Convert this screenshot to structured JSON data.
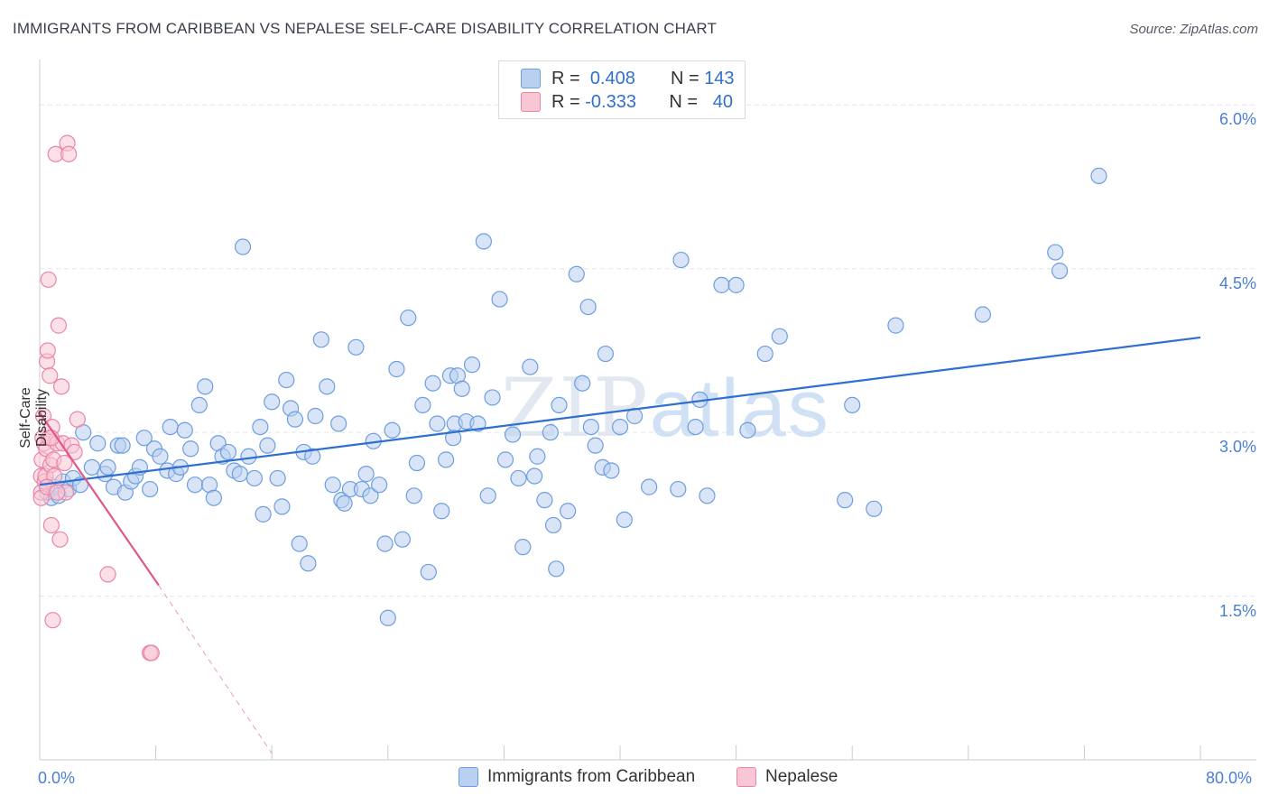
{
  "title": "IMMIGRANTS FROM CARIBBEAN VS NEPALESE SELF-CARE DISABILITY CORRELATION CHART",
  "source": "Source: ZipAtlas.com",
  "watermark": {
    "zip": "ZIP",
    "atlas": "atlas"
  },
  "legend_top": [
    {
      "r_label": "R =",
      "r_value": "0.408",
      "n_label": "N =",
      "n_value": "143"
    },
    {
      "r_label": "R =",
      "r_value": "-0.333",
      "n_label": "N =",
      "n_value": "40"
    }
  ],
  "colors": {
    "caribbean": "#6c9ee0",
    "caribbean_fill": "#b9d0f0",
    "nepalese": "#ec84a4",
    "nepalese_fill": "#f8c6d5",
    "trend_blue": "#2e6fd0",
    "trend_pink": "#e0588a"
  },
  "chart_data": {
    "type": "scatter",
    "ylabel": "Self-Care Disability",
    "xlim": [
      0,
      80
    ],
    "ylim": [
      0,
      6.3
    ],
    "x_tick_labels": [
      "0.0%",
      "80.0%"
    ],
    "y_ticks": [
      {
        "value": 1.5,
        "label": "1.5%"
      },
      {
        "value": 3.0,
        "label": "3.0%"
      },
      {
        "value": 4.5,
        "label": "4.5%"
      },
      {
        "value": 6.0,
        "label": "6.0%"
      }
    ],
    "series": [
      {
        "name": "Immigrants from Caribbean",
        "trend": {
          "x": [
            0,
            80
          ],
          "y": [
            2.52,
            3.87
          ]
        },
        "points": [
          [
            0.5,
            2.45
          ],
          [
            0.8,
            2.4
          ],
          [
            1.0,
            2.5
          ],
          [
            1.3,
            2.42
          ],
          [
            1.6,
            2.55
          ],
          [
            2.0,
            2.48
          ],
          [
            2.3,
            2.58
          ],
          [
            2.8,
            2.52
          ],
          [
            3.0,
            3.0
          ],
          [
            3.6,
            2.68
          ],
          [
            4.0,
            2.9
          ],
          [
            4.5,
            2.62
          ],
          [
            4.7,
            2.68
          ],
          [
            5.1,
            2.5
          ],
          [
            5.4,
            2.88
          ],
          [
            5.7,
            2.88
          ],
          [
            5.9,
            2.45
          ],
          [
            6.3,
            2.55
          ],
          [
            6.6,
            2.6
          ],
          [
            6.9,
            2.68
          ],
          [
            7.2,
            2.95
          ],
          [
            7.6,
            2.48
          ],
          [
            7.9,
            2.85
          ],
          [
            8.3,
            2.78
          ],
          [
            8.8,
            2.65
          ],
          [
            9.0,
            3.05
          ],
          [
            9.4,
            2.62
          ],
          [
            9.7,
            2.68
          ],
          [
            10.0,
            3.02
          ],
          [
            10.4,
            2.85
          ],
          [
            10.7,
            2.52
          ],
          [
            11.0,
            3.25
          ],
          [
            11.4,
            3.42
          ],
          [
            11.7,
            2.52
          ],
          [
            12.0,
            2.4
          ],
          [
            12.3,
            2.9
          ],
          [
            12.6,
            2.78
          ],
          [
            13.0,
            2.82
          ],
          [
            13.4,
            2.65
          ],
          [
            13.8,
            2.62
          ],
          [
            14.0,
            4.7
          ],
          [
            14.4,
            2.78
          ],
          [
            14.8,
            2.58
          ],
          [
            15.2,
            3.05
          ],
          [
            15.4,
            2.25
          ],
          [
            15.7,
            2.88
          ],
          [
            16.0,
            3.28
          ],
          [
            16.4,
            2.58
          ],
          [
            16.7,
            2.32
          ],
          [
            17.0,
            3.48
          ],
          [
            17.3,
            3.22
          ],
          [
            17.6,
            3.12
          ],
          [
            17.9,
            1.98
          ],
          [
            18.2,
            2.82
          ],
          [
            18.5,
            1.8
          ],
          [
            18.8,
            2.78
          ],
          [
            19.0,
            3.15
          ],
          [
            19.4,
            3.85
          ],
          [
            19.8,
            3.42
          ],
          [
            20.2,
            2.52
          ],
          [
            20.6,
            3.08
          ],
          [
            20.8,
            2.38
          ],
          [
            21.0,
            2.35
          ],
          [
            21.4,
            2.48
          ],
          [
            21.8,
            3.78
          ],
          [
            22.2,
            2.48
          ],
          [
            22.5,
            2.62
          ],
          [
            22.8,
            2.42
          ],
          [
            23.0,
            2.92
          ],
          [
            23.4,
            2.52
          ],
          [
            23.8,
            1.98
          ],
          [
            24.0,
            1.3
          ],
          [
            24.3,
            3.02
          ],
          [
            24.6,
            3.58
          ],
          [
            25.0,
            2.02
          ],
          [
            25.4,
            4.05
          ],
          [
            25.8,
            2.42
          ],
          [
            26.0,
            2.72
          ],
          [
            26.4,
            3.25
          ],
          [
            26.8,
            1.72
          ],
          [
            27.1,
            3.45
          ],
          [
            27.4,
            3.08
          ],
          [
            27.7,
            2.28
          ],
          [
            28.0,
            2.75
          ],
          [
            28.3,
            3.52
          ],
          [
            28.6,
            3.08
          ],
          [
            28.8,
            3.52
          ],
          [
            29.1,
            3.4
          ],
          [
            29.4,
            3.1
          ],
          [
            29.8,
            3.62
          ],
          [
            30.2,
            3.08
          ],
          [
            30.6,
            4.75
          ],
          [
            30.9,
            2.42
          ],
          [
            31.2,
            3.32
          ],
          [
            31.7,
            4.22
          ],
          [
            32.1,
            2.75
          ],
          [
            32.6,
            2.98
          ],
          [
            33.0,
            2.58
          ],
          [
            33.3,
            1.95
          ],
          [
            33.8,
            3.6
          ],
          [
            34.1,
            2.6
          ],
          [
            34.3,
            2.78
          ],
          [
            34.8,
            2.38
          ],
          [
            35.4,
            2.15
          ],
          [
            35.6,
            1.75
          ],
          [
            35.8,
            3.25
          ],
          [
            36.4,
            2.28
          ],
          [
            37.0,
            4.45
          ],
          [
            37.4,
            3.45
          ],
          [
            37.8,
            4.15
          ],
          [
            38.0,
            3.05
          ],
          [
            38.3,
            2.88
          ],
          [
            38.8,
            2.68
          ],
          [
            39.0,
            3.72
          ],
          [
            39.4,
            2.65
          ],
          [
            40.0,
            3.05
          ],
          [
            40.3,
            2.2
          ],
          [
            41.0,
            3.15
          ],
          [
            42.0,
            2.5
          ],
          [
            44.0,
            2.48
          ],
          [
            44.2,
            4.58
          ],
          [
            45.5,
            3.3
          ],
          [
            45.2,
            3.05
          ],
          [
            47.0,
            4.35
          ],
          [
            46.0,
            2.42
          ],
          [
            48.8,
            3.02
          ],
          [
            48.0,
            4.35
          ],
          [
            50.0,
            3.72
          ],
          [
            51.0,
            3.88
          ],
          [
            56.0,
            3.25
          ],
          [
            55.5,
            2.38
          ],
          [
            57.5,
            2.3
          ],
          [
            59.0,
            3.98
          ],
          [
            65.0,
            4.08
          ],
          [
            70.0,
            4.65
          ],
          [
            70.3,
            4.48
          ],
          [
            73.0,
            5.35
          ],
          [
            35.2,
            3.0
          ],
          [
            28.5,
            2.95
          ]
        ]
      },
      {
        "name": "Nepalese",
        "trend": {
          "x": [
            0,
            8.2
          ],
          "y": [
            3.18,
            1.6
          ]
        },
        "trend_dashed": {
          "x": [
            8.2,
            16.0
          ],
          "y": [
            1.6,
            0.06
          ]
        },
        "points": [
          [
            0.1,
            2.45
          ],
          [
            0.1,
            2.6
          ],
          [
            0.1,
            2.4
          ],
          [
            0.15,
            2.75
          ],
          [
            0.2,
            2.95
          ],
          [
            0.25,
            3.15
          ],
          [
            0.3,
            2.9
          ],
          [
            0.35,
            2.55
          ],
          [
            0.4,
            2.6
          ],
          [
            0.45,
            2.85
          ],
          [
            0.5,
            3.65
          ],
          [
            0.55,
            3.75
          ],
          [
            0.6,
            4.4
          ],
          [
            0.65,
            2.95
          ],
          [
            0.7,
            3.52
          ],
          [
            0.75,
            2.7
          ],
          [
            0.8,
            2.15
          ],
          [
            0.85,
            3.05
          ],
          [
            0.9,
            1.28
          ],
          [
            0.95,
            2.75
          ],
          [
            1.0,
            2.6
          ],
          [
            1.1,
            5.55
          ],
          [
            1.2,
            2.9
          ],
          [
            1.3,
            3.98
          ],
          [
            1.4,
            2.02
          ],
          [
            1.5,
            3.42
          ],
          [
            1.6,
            2.9
          ],
          [
            1.7,
            2.72
          ],
          [
            1.8,
            2.45
          ],
          [
            1.9,
            5.65
          ],
          [
            2.0,
            5.55
          ],
          [
            2.2,
            2.88
          ],
          [
            2.4,
            2.82
          ],
          [
            2.6,
            3.12
          ],
          [
            4.7,
            1.7
          ],
          [
            7.6,
            0.98
          ],
          [
            7.7,
            0.98
          ],
          [
            0.5,
            2.5
          ],
          [
            1.2,
            2.45
          ],
          [
            0.8,
            2.95
          ]
        ]
      }
    ]
  }
}
